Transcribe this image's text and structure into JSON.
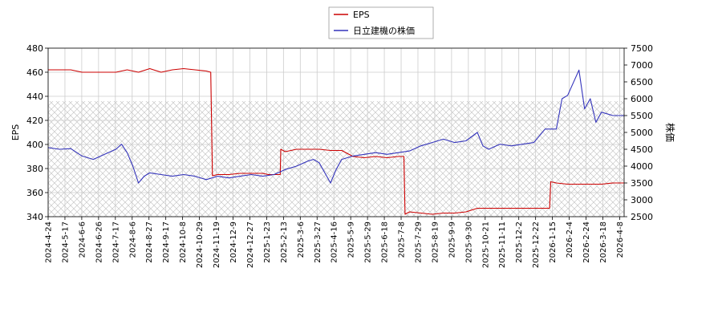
{
  "chart_data": {
    "type": "line",
    "title": "",
    "legend_position": "top-center",
    "grid": true,
    "hatched_band": [
      340,
      436
    ],
    "left_axis": {
      "label": "EPS",
      "ylim": [
        340,
        480
      ],
      "ticks": [
        340,
        360,
        380,
        400,
        420,
        440,
        460,
        480
      ]
    },
    "right_axis": {
      "label": "株価",
      "ylim": [
        2500,
        7500
      ],
      "ticks": [
        2500,
        3000,
        3500,
        4000,
        4500,
        5000,
        5500,
        6000,
        6500,
        7000,
        7500
      ]
    },
    "x_ticks": [
      "2024-4-24",
      "2024-5-17",
      "2024-6-6",
      "2024-6-26",
      "2024-7-17",
      "2024-8-6",
      "2024-8-27",
      "2024-9-17",
      "2024-10-8",
      "2024-10-29",
      "2024-11-19",
      "2024-12-9",
      "2024-12-27",
      "2025-1-23",
      "2025-2-13",
      "2025-3-6",
      "2025-3-27",
      "2025-4-16",
      "2025-5-9",
      "2025-5-29",
      "2025-6-18",
      "2025-7-8",
      "2025-7-29",
      "2025-8-19",
      "2025-9-9",
      "2025-9-30",
      "2025-10-21",
      "2025-11-11",
      "2025-12-2",
      "2025-12-22",
      "2026-1-15",
      "2026-2-4",
      "2026-2-24",
      "2026-3-18",
      "2026-4-8"
    ],
    "series": [
      {
        "name": "EPS",
        "axis": "left",
        "color": "#cc0000",
        "values": [
          [
            0,
            462
          ],
          [
            2,
            462
          ],
          [
            3,
            460
          ],
          [
            4,
            460
          ],
          [
            5,
            460
          ],
          [
            6,
            460
          ],
          [
            7,
            462
          ],
          [
            8,
            460
          ],
          [
            9,
            463
          ],
          [
            10,
            460
          ],
          [
            11,
            462
          ],
          [
            12,
            463
          ],
          [
            13,
            462
          ],
          [
            14,
            461
          ],
          [
            14.4,
            460
          ],
          [
            14.55,
            374
          ],
          [
            15,
            375
          ],
          [
            16,
            375
          ],
          [
            17,
            376
          ],
          [
            18,
            376
          ],
          [
            19,
            376
          ],
          [
            19.5,
            375
          ],
          [
            20,
            375
          ],
          [
            20.55,
            375
          ],
          [
            20.6,
            396
          ],
          [
            21,
            394
          ],
          [
            22,
            396
          ],
          [
            23,
            396
          ],
          [
            24,
            396
          ],
          [
            25,
            395
          ],
          [
            26,
            395
          ],
          [
            27,
            390
          ],
          [
            28,
            389
          ],
          [
            29,
            390
          ],
          [
            30,
            389
          ],
          [
            31,
            390
          ],
          [
            31.5,
            390
          ],
          [
            31.6,
            342
          ],
          [
            32,
            344
          ],
          [
            33,
            343
          ],
          [
            34,
            342
          ],
          [
            35,
            343
          ],
          [
            36,
            343
          ],
          [
            37,
            344
          ],
          [
            38,
            347
          ],
          [
            39,
            347
          ],
          [
            40,
            347
          ],
          [
            41,
            347
          ],
          [
            42,
            347
          ],
          [
            43,
            347
          ],
          [
            44,
            347
          ],
          [
            44.4,
            347
          ],
          [
            44.5,
            369
          ],
          [
            45,
            368
          ],
          [
            46,
            367
          ],
          [
            47,
            367
          ],
          [
            48,
            367
          ],
          [
            49,
            367
          ],
          [
            50,
            368
          ],
          [
            51,
            368
          ]
        ]
      },
      {
        "name": "日立建機の株価",
        "axis": "right",
        "color": "#3333bb",
        "values": [
          [
            0,
            4550
          ],
          [
            1,
            4500
          ],
          [
            2,
            4520
          ],
          [
            3,
            4300
          ],
          [
            4,
            4200
          ],
          [
            5,
            4350
          ],
          [
            6,
            4500
          ],
          [
            6.5,
            4650
          ],
          [
            7,
            4400
          ],
          [
            7.5,
            4000
          ],
          [
            8,
            3500
          ],
          [
            8.5,
            3700
          ],
          [
            9,
            3800
          ],
          [
            10,
            3750
          ],
          [
            11,
            3700
          ],
          [
            12,
            3750
          ],
          [
            13,
            3700
          ],
          [
            14,
            3600
          ],
          [
            15,
            3700
          ],
          [
            16,
            3650
          ],
          [
            17,
            3700
          ],
          [
            18,
            3750
          ],
          [
            19,
            3700
          ],
          [
            20,
            3750
          ],
          [
            21,
            3900
          ],
          [
            22,
            4000
          ],
          [
            23,
            4150
          ],
          [
            23.5,
            4200
          ],
          [
            24,
            4100
          ],
          [
            24.5,
            3800
          ],
          [
            25,
            3500
          ],
          [
            25.5,
            3900
          ],
          [
            26,
            4200
          ],
          [
            27,
            4300
          ],
          [
            28,
            4350
          ],
          [
            29,
            4400
          ],
          [
            30,
            4350
          ],
          [
            31,
            4400
          ],
          [
            32,
            4450
          ],
          [
            33,
            4600
          ],
          [
            34,
            4700
          ],
          [
            35,
            4800
          ],
          [
            36,
            4700
          ],
          [
            37,
            4750
          ],
          [
            38,
            5000
          ],
          [
            38.5,
            4600
          ],
          [
            39,
            4500
          ],
          [
            40,
            4650
          ],
          [
            41,
            4600
          ],
          [
            42,
            4650
          ],
          [
            43,
            4700
          ],
          [
            44,
            5100
          ],
          [
            45,
            5100
          ],
          [
            45.5,
            6000
          ],
          [
            46,
            6100
          ],
          [
            47,
            6850
          ],
          [
            47.5,
            5700
          ],
          [
            48,
            6000
          ],
          [
            48.5,
            5300
          ],
          [
            49,
            5600
          ],
          [
            50,
            5500
          ],
          [
            51,
            5500
          ]
        ]
      }
    ]
  },
  "legend": {
    "eps_label": "EPS",
    "price_label": "日立建機の株価"
  }
}
